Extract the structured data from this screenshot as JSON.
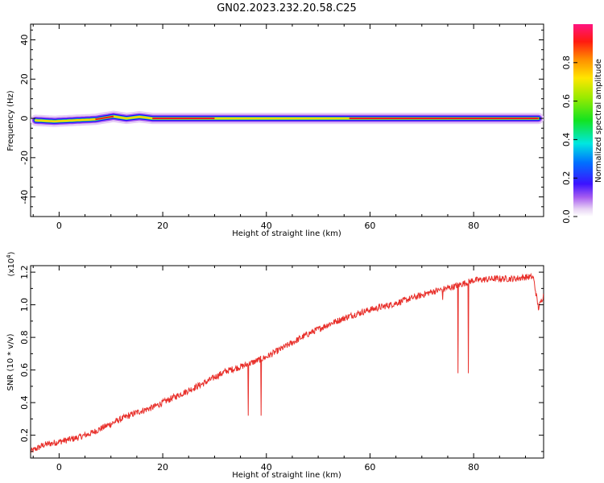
{
  "title": "GN02.2023.232.20.58.C25",
  "colors": {
    "line": "#e8302b",
    "axis": "#000000",
    "ridge": "#ee1c1c"
  },
  "chart_data": [
    {
      "type": "heatmap",
      "xlabel": "Height of straight line (km)",
      "ylabel": "Frequency (Hz)",
      "xlim": [
        -5.5,
        93.5
      ],
      "ylim": [
        -50,
        48
      ],
      "xticks": [
        "0",
        "20",
        "40",
        "60",
        "80"
      ],
      "xtick_values": [
        0,
        20,
        40,
        60,
        80
      ],
      "yticks": [
        "40",
        "20",
        "0",
        "-20",
        "-40"
      ],
      "ytick_values": [
        40,
        20,
        0,
        -20,
        -40
      ],
      "colorbar": {
        "label": "Normalized spectral amplitude",
        "range": [
          0,
          1
        ],
        "ticks": [
          "0.0",
          "0.2",
          "0.4",
          "0.6",
          "0.8"
        ],
        "tick_values": [
          0,
          0.2,
          0.4,
          0.6,
          0.8
        ]
      },
      "ridge": {
        "x": [
          -4.5,
          -1,
          3,
          7,
          10.5,
          13,
          15.5,
          18,
          30,
          43,
          44,
          56,
          75,
          92.5
        ],
        "freq": [
          -1,
          -1.5,
          -1,
          -0.5,
          1,
          0,
          0.8,
          0,
          0,
          0,
          0,
          0,
          0,
          0
        ],
        "amplitude": [
          0.45,
          0.55,
          0.5,
          0.8,
          0.9,
          0.6,
          0.6,
          0.9,
          0.9,
          0.6,
          0.6,
          0.9,
          0.9,
          0.9
        ]
      }
    },
    {
      "type": "line",
      "xlabel": "Height of straight line (km)",
      "ylabel": "SNR (10 * v/v)",
      "scale_note": "(x10",
      "scale_exp": "4",
      "scale_close": ")",
      "xlim": [
        -5.5,
        93.5
      ],
      "ylim": [
        0.06,
        1.24
      ],
      "xticks": [
        "0",
        "20",
        "40",
        "60",
        "80"
      ],
      "xtick_values": [
        0,
        20,
        40,
        60,
        80
      ],
      "yticks": [
        "0.2",
        "0.4",
        "0.6",
        "0.8",
        "1.0",
        "1.2"
      ],
      "ytick_values": [
        0.2,
        0.4,
        0.6,
        0.8,
        1.0,
        1.2
      ],
      "series": [
        {
          "x": [
            -5.5,
            -3,
            0,
            3,
            6,
            8,
            10,
            12,
            15,
            18,
            20,
            24,
            28,
            32,
            36,
            40,
            44,
            48,
            52,
            56,
            60,
            64,
            68,
            72,
            76,
            80,
            84,
            86,
            88,
            90,
            91.5,
            92.5,
            93.5
          ],
          "values": [
            0.1,
            0.14,
            0.16,
            0.18,
            0.21,
            0.24,
            0.27,
            0.3,
            0.34,
            0.37,
            0.4,
            0.46,
            0.52,
            0.59,
            0.63,
            0.68,
            0.75,
            0.82,
            0.88,
            0.93,
            0.97,
            1.0,
            1.04,
            1.08,
            1.11,
            1.15,
            1.16,
            1.16,
            1.16,
            1.17,
            1.17,
            0.98,
            1.06
          ],
          "spikes": [
            {
              "x": 36.5,
              "value": 0.32
            },
            {
              "x": 39.0,
              "value": 0.32
            },
            {
              "x": 74.0,
              "value": 1.03
            },
            {
              "x": 77.0,
              "value": 0.58
            },
            {
              "x": 79.0,
              "value": 0.58
            }
          ]
        }
      ]
    }
  ]
}
